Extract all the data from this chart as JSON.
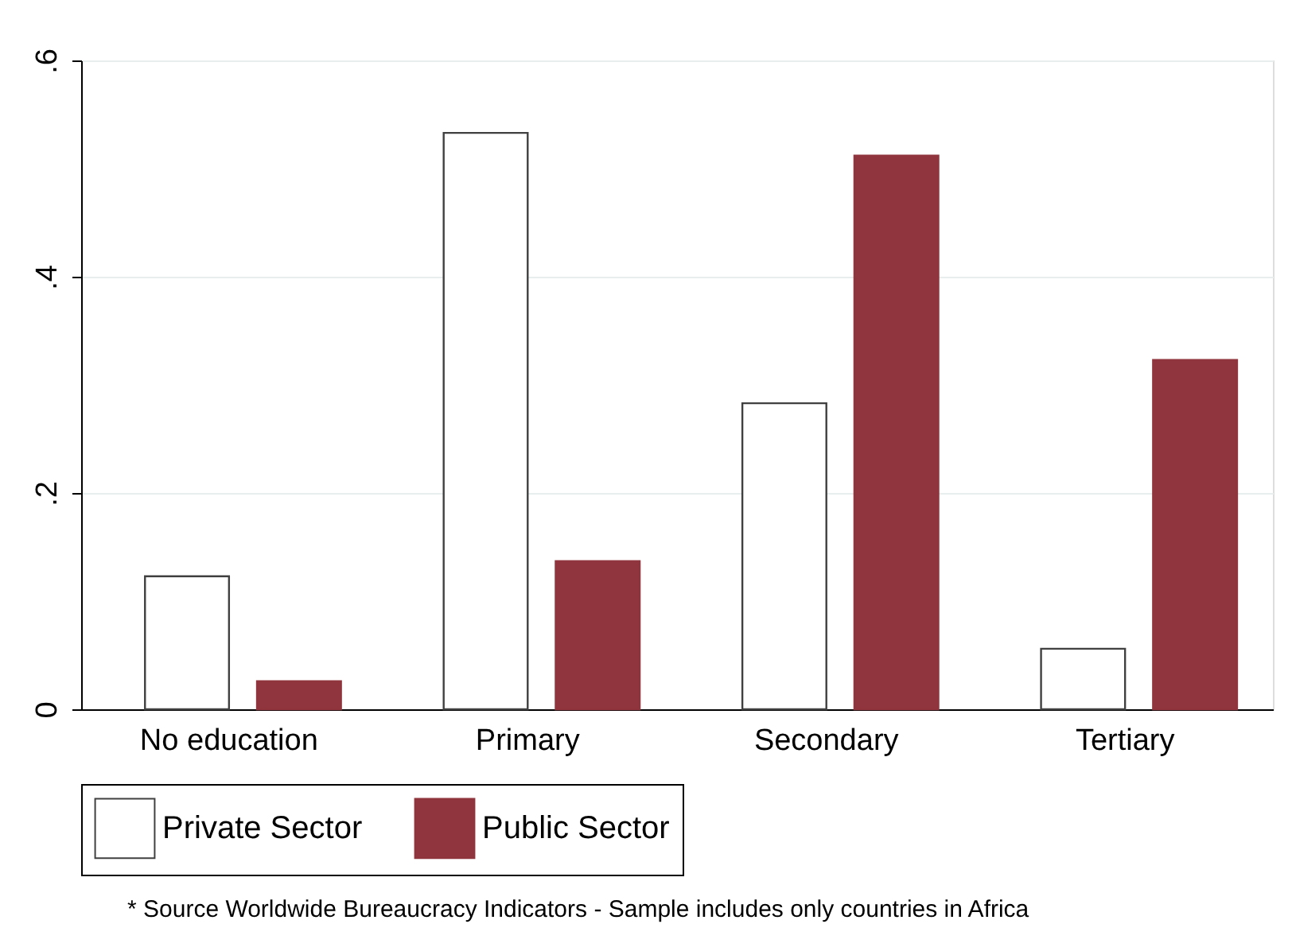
{
  "chart_data": {
    "type": "bar",
    "categories": [
      "No education",
      "Primary",
      "Secondary",
      "Tertiary"
    ],
    "series": [
      {
        "name": "Private Sector",
        "color": "#ffffff",
        "values": [
          0.123,
          0.533,
          0.283,
          0.056
        ]
      },
      {
        "name": "Public Sector",
        "color": "#90353d",
        "values": [
          0.026,
          0.137,
          0.512,
          0.323
        ]
      }
    ],
    "ylim": [
      0,
      0.6
    ],
    "yticks": [
      0,
      {
        "value": 0.2,
        "label": ".2"
      },
      {
        "value": 0.4,
        "label": ".4"
      },
      {
        "value": 0.6,
        "label": ".6"
      }
    ],
    "grid": "y",
    "legend": "bottom",
    "annotations": [
      "* Source Worldwide Bureaucracy Indicators - Sample includes only countries in Africa"
    ]
  }
}
